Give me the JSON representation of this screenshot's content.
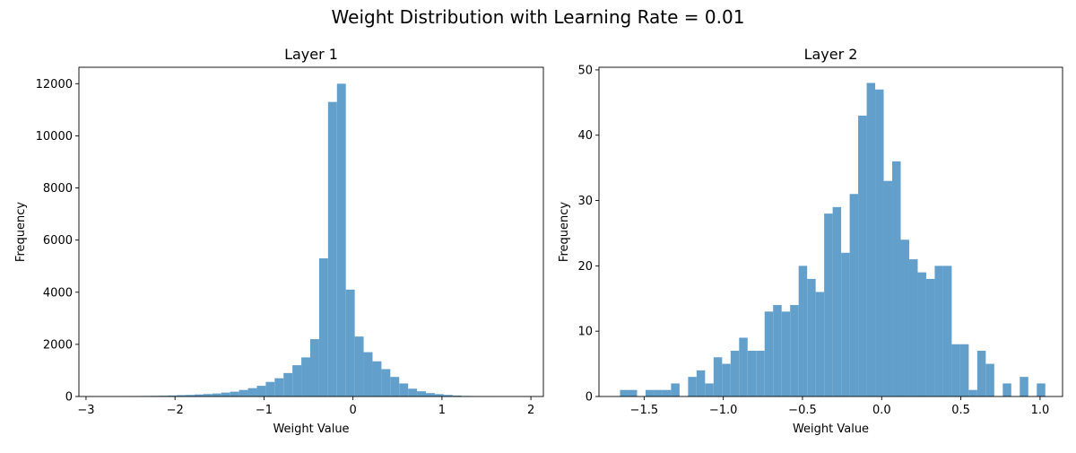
{
  "chart_data": {
    "suptitle": "Weight Distribution with Learning Rate = 0.01",
    "panels": [
      {
        "type": "bar",
        "title": "Layer 1",
        "xlabel": "Weight Value",
        "ylabel": "Frequency",
        "xlim": [
          -3.08,
          2.14
        ],
        "ylim": [
          0,
          12630
        ],
        "xticks": [
          -3,
          -2,
          -1,
          0,
          1,
          2
        ],
        "yticks": [
          0,
          2000,
          4000,
          6000,
          8000,
          10000,
          12000
        ],
        "bin_start": -2.98,
        "bin_width": 0.1,
        "values": [
          3,
          5,
          6,
          8,
          12,
          16,
          20,
          25,
          30,
          40,
          52,
          60,
          78,
          95,
          115,
          150,
          185,
          250,
          320,
          410,
          560,
          700,
          900,
          1200,
          1500,
          2200,
          5300,
          11300,
          12000,
          4100,
          2300,
          1700,
          1350,
          1050,
          750,
          500,
          300,
          200,
          130,
          90,
          60,
          35,
          20,
          12,
          8,
          5,
          3,
          2,
          1,
          1
        ]
      },
      {
        "type": "bar",
        "title": "Layer 2",
        "xlabel": "Weight Value",
        "ylabel": "Frequency",
        "xlim": [
          -1.785,
          1.142
        ],
        "ylim": [
          0,
          50.4
        ],
        "xticks": [
          -1.5,
          -1.0,
          -0.5,
          0.0,
          0.5,
          1.0
        ],
        "xtick_labels": [
          "−1.5",
          "−1.0",
          "−0.5",
          "0.0",
          "0.5",
          "1.0"
        ],
        "yticks": [
          0,
          10,
          20,
          30,
          40,
          50
        ],
        "bin_start": -1.652,
        "bin_width": 0.0537,
        "values": [
          1,
          1,
          0,
          1,
          1,
          1,
          2,
          0,
          3,
          4,
          2,
          6,
          5,
          7,
          9,
          7,
          7,
          13,
          14,
          13,
          14,
          20,
          18,
          16,
          28,
          29,
          22,
          31,
          43,
          48,
          47,
          33,
          36,
          24,
          21,
          19,
          18,
          20,
          20,
          8,
          8,
          1,
          7,
          5,
          0,
          2,
          0,
          3,
          0,
          2
        ]
      }
    ]
  }
}
